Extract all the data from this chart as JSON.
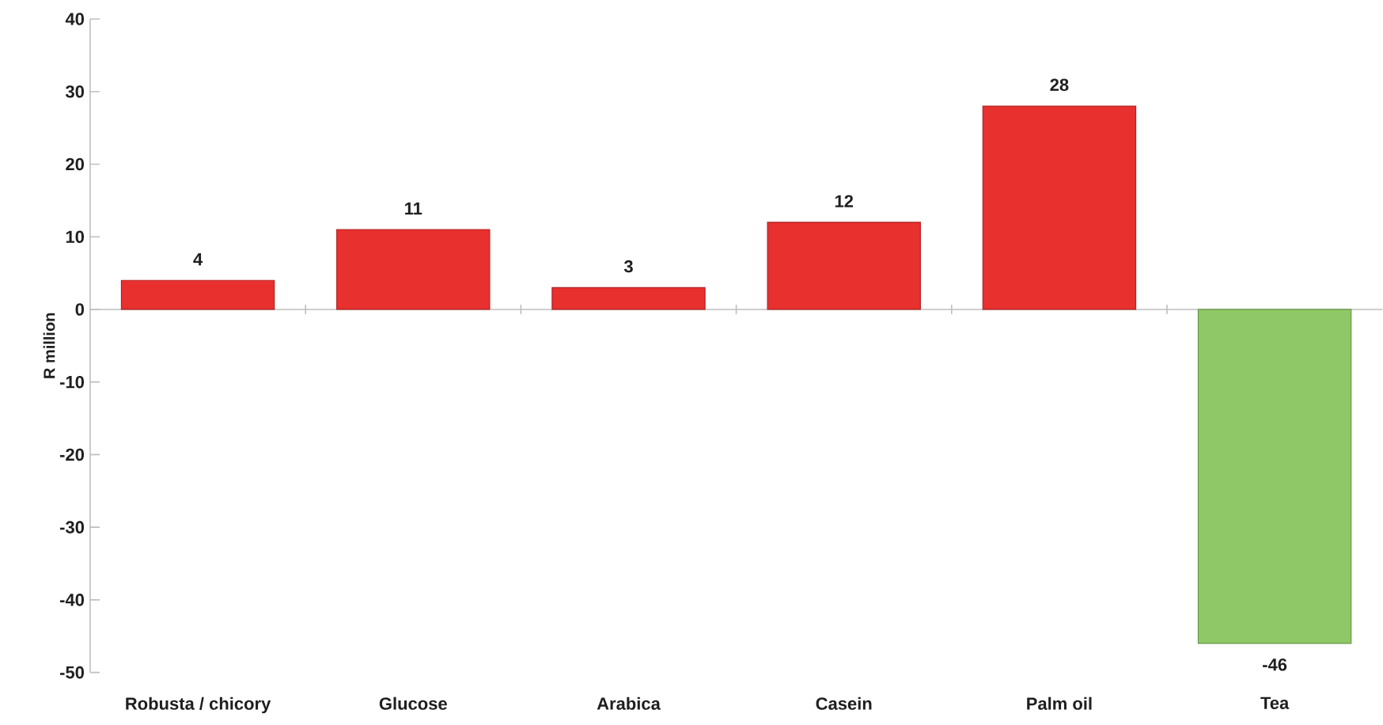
{
  "chart_data": {
    "type": "bar",
    "ylabel": "R million",
    "categories": [
      "Robusta / chicory",
      "Glucose",
      "Arabica",
      "Casein",
      "Palm oil",
      "Tea"
    ],
    "values": [
      4,
      11,
      3,
      12,
      28,
      -46
    ],
    "colors": [
      "#e8302f",
      "#e8302f",
      "#e8302f",
      "#e8302f",
      "#e8302f",
      "#8fc866"
    ],
    "ylim": [
      -50,
      40
    ],
    "yticks": [
      -50,
      -40,
      -30,
      -20,
      -10,
      0,
      10,
      20,
      30,
      40
    ],
    "data_labels": true
  }
}
